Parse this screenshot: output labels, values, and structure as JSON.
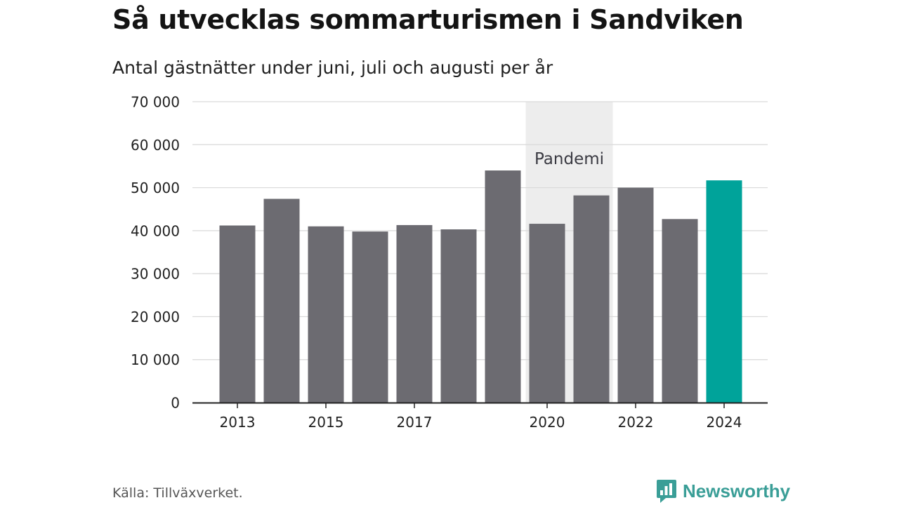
{
  "title": "Så utvecklas sommarturismen i Sandviken",
  "subtitle": "Antal gästnätter under juni, juli och augusti per år",
  "source": "Källa: Tillväxverket.",
  "brand": {
    "name": "Newsworthy",
    "icon": "newsworthy-logo-icon",
    "color": "#3a9e97"
  },
  "chart_data": {
    "type": "bar",
    "categories": [
      "2013",
      "",
      "2015",
      "",
      "2017",
      "",
      "",
      "2020",
      "",
      "2022",
      "",
      "2024"
    ],
    "values": [
      41200,
      47400,
      41000,
      39800,
      41300,
      40300,
      54000,
      41600,
      48200,
      50000,
      42700,
      51700
    ],
    "ylim": [
      0,
      70000
    ],
    "yticks": [
      0,
      10000,
      20000,
      30000,
      40000,
      50000,
      60000,
      70000
    ],
    "ytick_labels": [
      "0",
      "10 000",
      "20 000",
      "30 000",
      "40 000",
      "50 000",
      "60 000",
      "70 000"
    ],
    "grid": true,
    "colors": {
      "bar": "#6c6b71",
      "highlight": "#00a39a",
      "highlight_index": 11,
      "band": "#ededed",
      "grid": "#d9d9d9",
      "axis": "#222222",
      "tick_text": "#1f1f1f",
      "band_text": "#3a3a42"
    },
    "annotation": {
      "label": "Pandemi",
      "from_index": 7,
      "to_index": 8
    }
  }
}
